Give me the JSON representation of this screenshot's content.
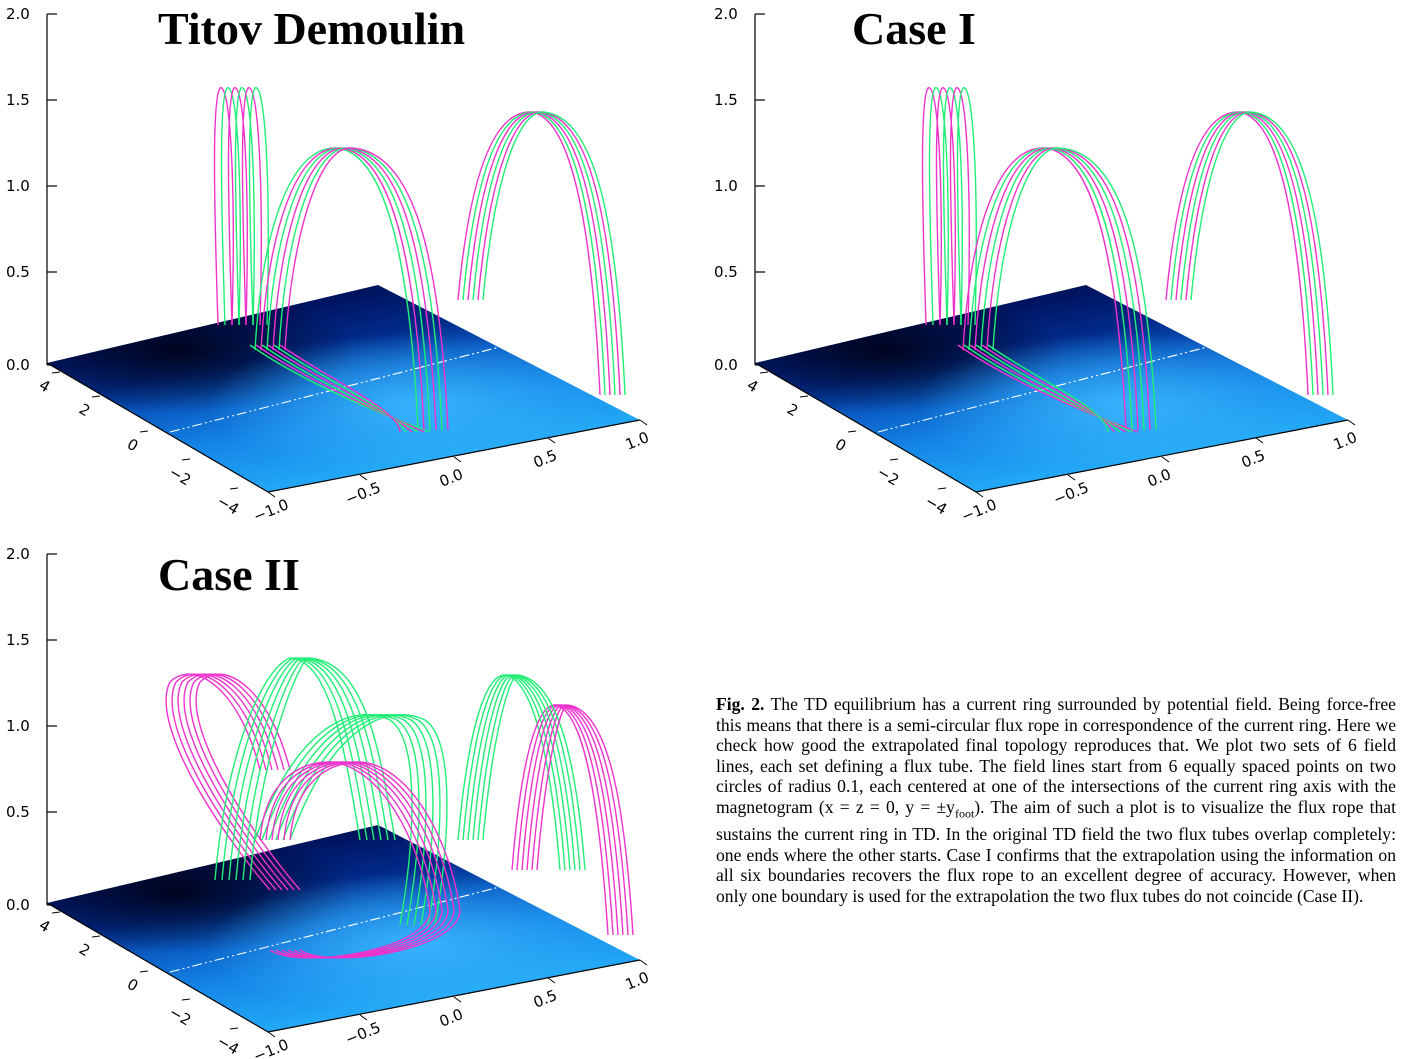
{
  "figure": {
    "panels": [
      {
        "id": "td",
        "title": "Titov Demoulin"
      },
      {
        "id": "case1",
        "title": "Case I"
      },
      {
        "id": "case2",
        "title": "Case II"
      }
    ],
    "axis_labels": {
      "z_ticks": [
        "2.0",
        "1.5",
        "1.0",
        "0.5",
        "0.0"
      ],
      "x_ticks": [
        "−1.0",
        "−0.5",
        "0.0",
        "0.5",
        "1.0"
      ],
      "y_ticks": [
        "4",
        "2",
        "0",
        "−2",
        "−4"
      ]
    },
    "colors": {
      "green_flux_tube": "#22ee77",
      "magenta_flux_tube": "#ee33cc",
      "magnetogram_dark": "#001040",
      "magnetogram_light": "#1aa8f5"
    }
  },
  "caption": {
    "label": "Fig. 2.",
    "text": " The TD equilibrium has a current ring surrounded by potential field. Being force-free this means that there is a semi-circular flux rope in correspondence of the current ring. Here we check how good the extrapolated final topology reproduces that. We plot two sets of 6 field lines, each set defining a flux tube. The field lines start from 6 equally spaced points on two circles of radius 0.1, each centered at one of the intersections of the current ring axis with the magnetogram (x = z = 0, y = ±y",
    "sub": "foot",
    "text2": "). The aim of such a plot is to visualize the flux rope that sustains the current ring in TD. In the original TD field the two flux tubes overlap completely: one ends where the other starts. Case I confirms that the extrapolation using the information on all six boundaries recovers the flux rope to an excellent degree of accuracy. However, when only one boundary is used for the extrapolation the two flux tubes do not coincide (Case II)."
  }
}
